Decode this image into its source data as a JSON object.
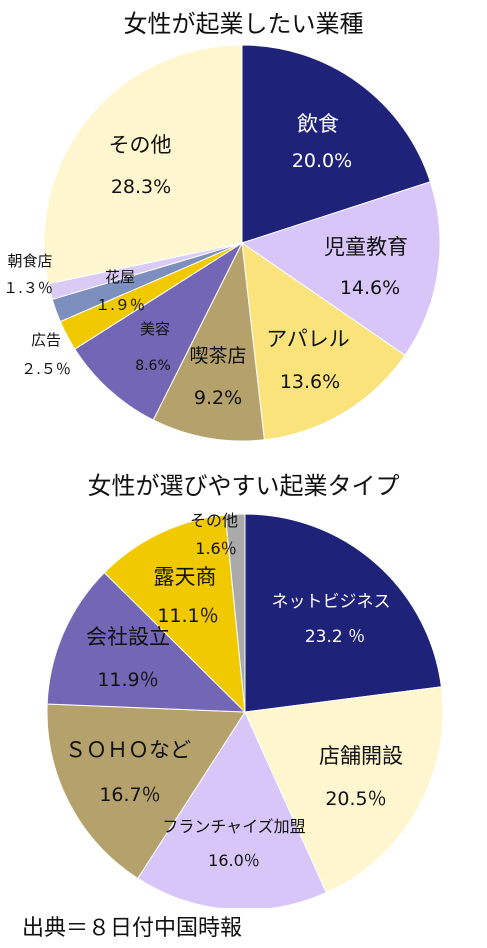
{
  "chart_data": [
    {
      "type": "pie",
      "title": "女性が起業したい業種",
      "slices": [
        {
          "name": "飲食",
          "value": 20.0,
          "label": "20.0%",
          "color": "#1e2278",
          "text_color": "#ffffff"
        },
        {
          "name": "児童教育",
          "value": 14.6,
          "label": "14.6%",
          "color": "#d7c6f7",
          "text_color": "#111111"
        },
        {
          "name": "アパレル",
          "value": 13.6,
          "label": "13.6%",
          "color": "#fae37a",
          "text_color": "#111111"
        },
        {
          "name": "喫茶店",
          "value": 9.2,
          "label": "9.2%",
          "color": "#b5a16c",
          "text_color": "#111111"
        },
        {
          "name": "美容",
          "value": 8.6,
          "label": "8.6%",
          "color": "#7366b5",
          "text_color": "#111111"
        },
        {
          "name": "広告",
          "value": 2.5,
          "label": "２.５％",
          "color": "#f1c900",
          "text_color": "#111111"
        },
        {
          "name": "花屋",
          "value": 1.9,
          "label": "１.９％",
          "color": "#7d8fbf",
          "text_color": "#111111"
        },
        {
          "name": "朝食店",
          "value": 1.3,
          "label": "１.３％",
          "color": "#d9cbf4",
          "text_color": "#111111"
        },
        {
          "name": "その他",
          "value": 28.3,
          "label": "28.3%",
          "color": "#fdf6cf",
          "text_color": "#111111"
        }
      ]
    },
    {
      "type": "pie",
      "title": "女性が選びやすい起業タイプ",
      "slices": [
        {
          "name": "ネットビジネス",
          "value": 23.2,
          "label": "23.2 ％",
          "color": "#1e2278",
          "text_color": "#ffffff"
        },
        {
          "name": "店舗開設",
          "value": 20.5,
          "label": "20.5％",
          "color": "#fdf6cf",
          "text_color": "#111111"
        },
        {
          "name": "フランチャイズ加盟",
          "value": 16.0,
          "label": "16.0％",
          "color": "#d7c6f7",
          "text_color": "#111111"
        },
        {
          "name": "ＳＯＨＯなど",
          "value": 16.7,
          "label": "16.7％",
          "color": "#b5a16c",
          "text_color": "#111111"
        },
        {
          "name": "会社設立",
          "value": 11.9,
          "label": "11.9％",
          "color": "#7366b5",
          "text_color": "#111111"
        },
        {
          "name": "露天商",
          "value": 11.1,
          "label": "11.1％",
          "color": "#f1c900",
          "text_color": "#111111"
        },
        {
          "name": "その他",
          "value": 1.6,
          "label": "1.6％",
          "color": "#aaaaaa",
          "text_color": "#111111"
        }
      ]
    }
  ],
  "source": "出典＝８日付中国時報"
}
